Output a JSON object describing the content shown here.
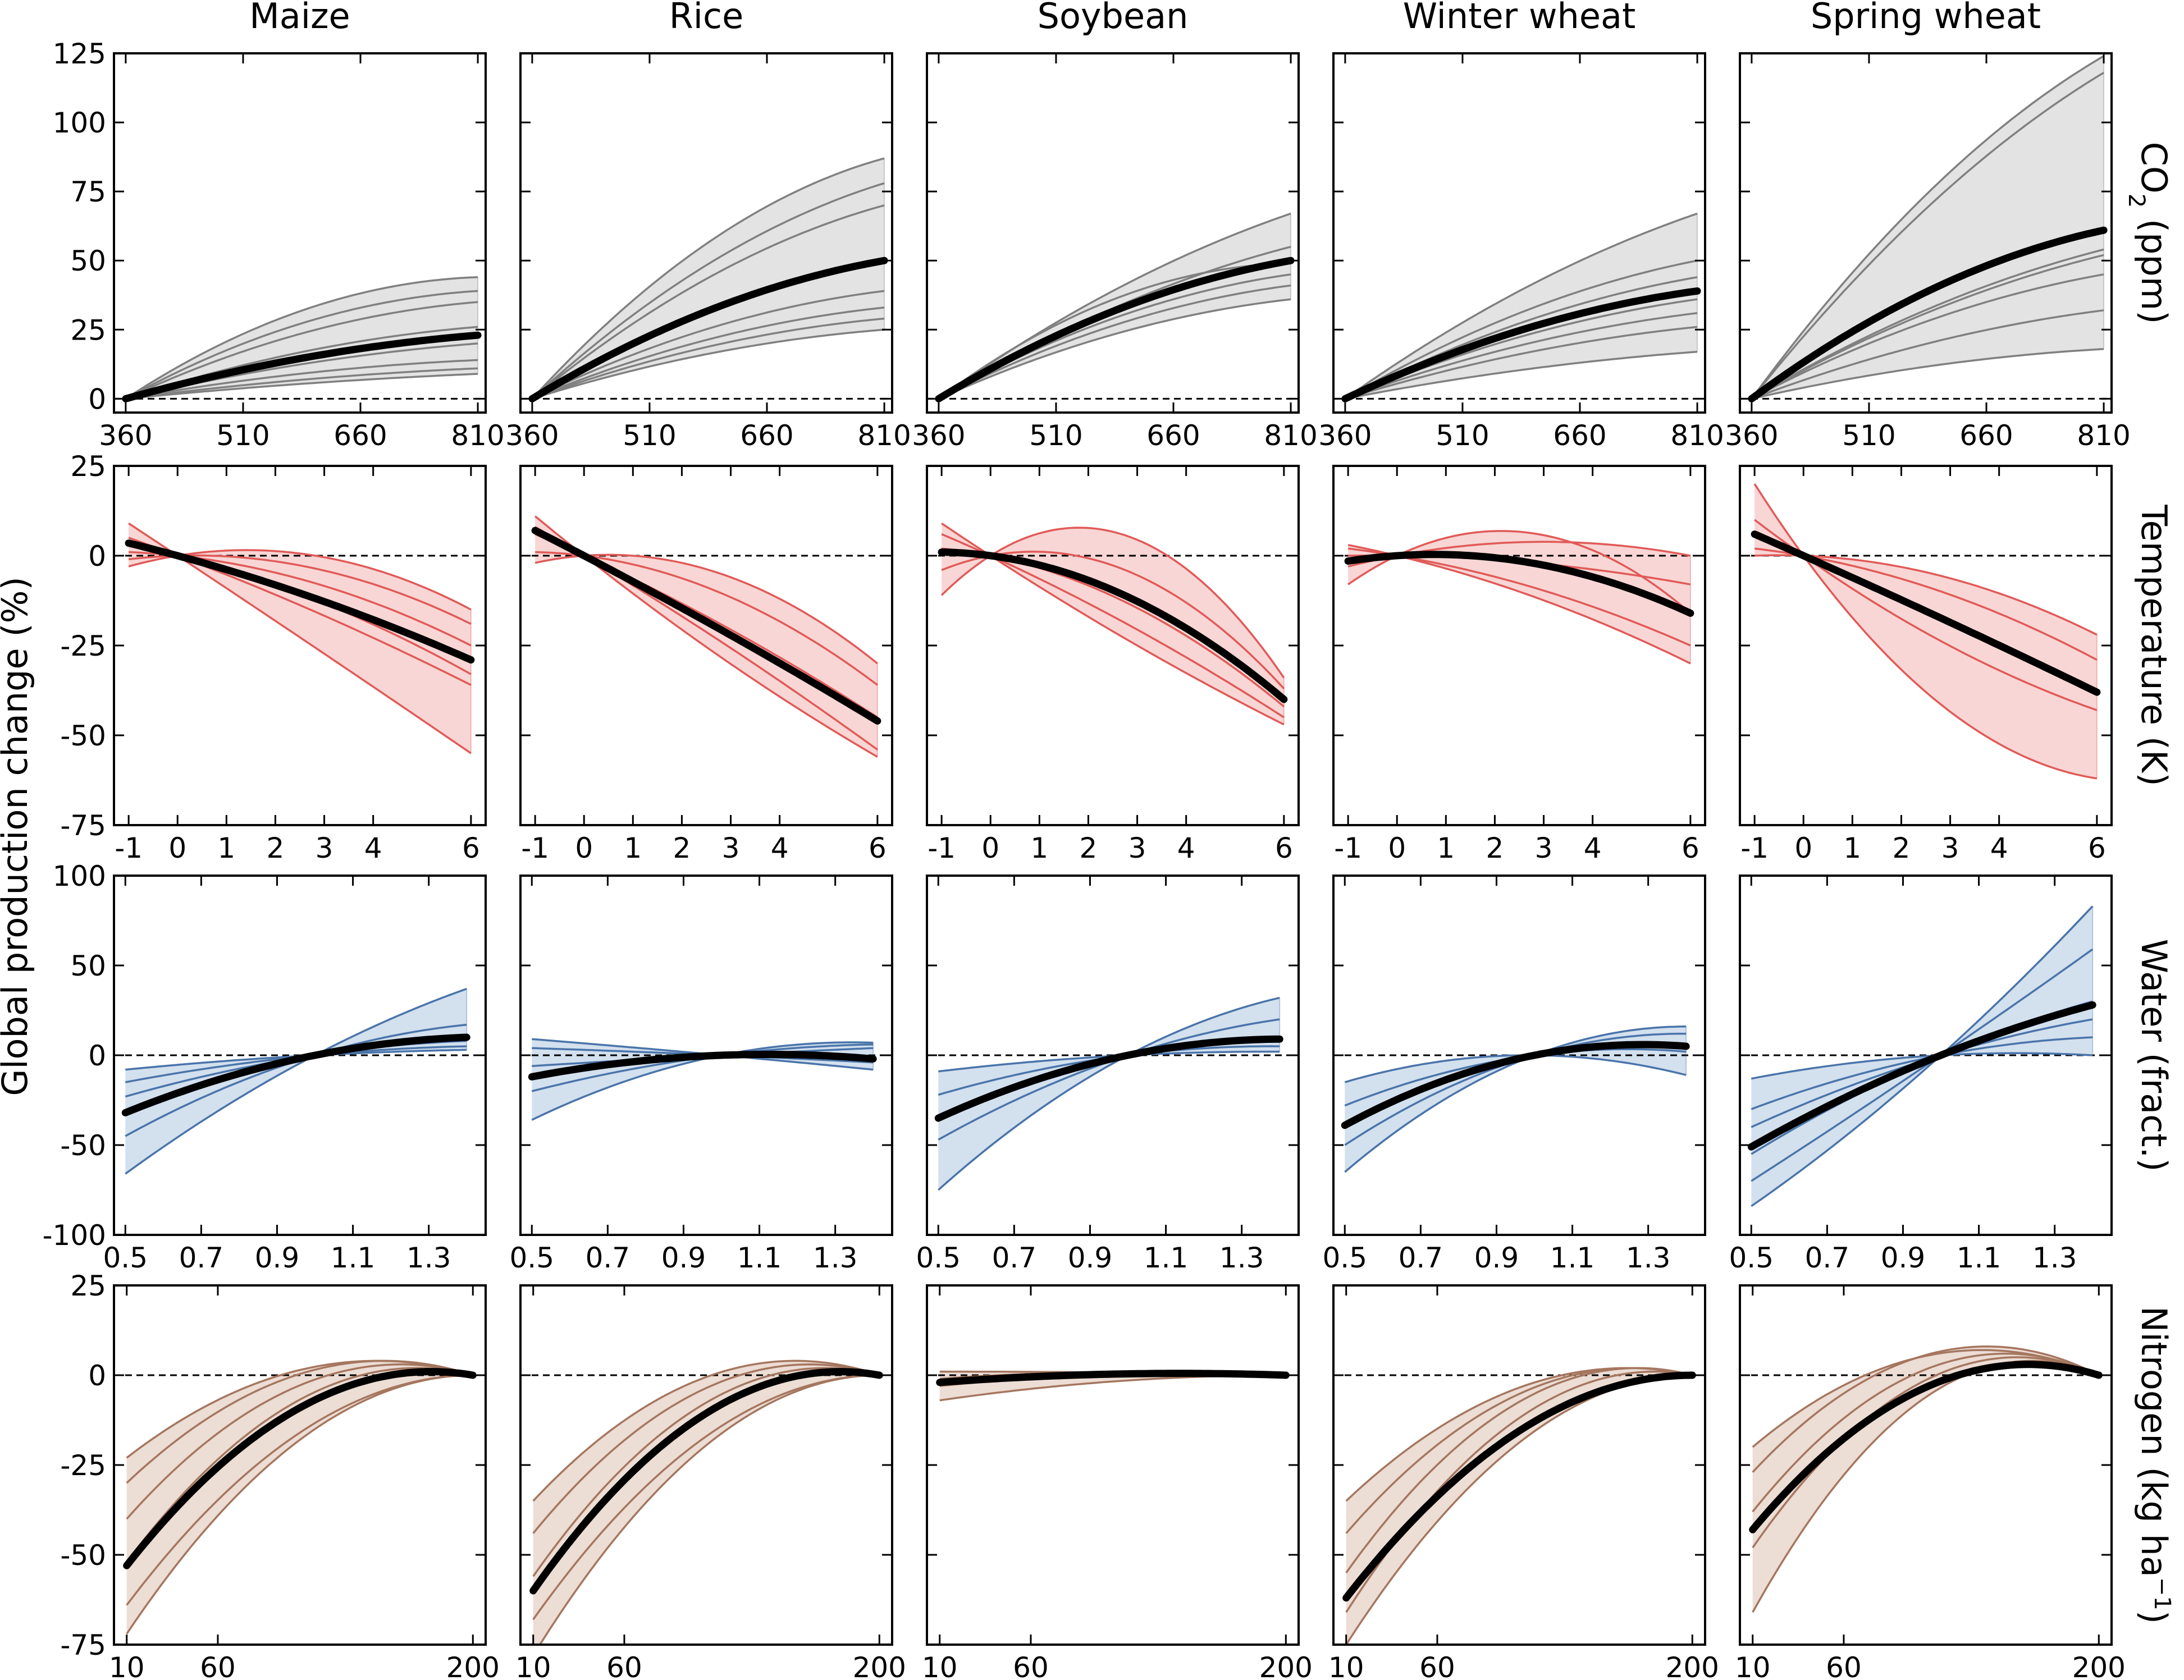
{
  "figure": {
    "ylabel": "Global production change (%)",
    "columns": [
      "Maize",
      "Rice",
      "Soybean",
      "Winter wheat",
      "Spring wheat"
    ]
  },
  "rows": [
    {
      "key": "co2",
      "label_main": "CO",
      "label_sub": "2",
      "label_rest": " (ppm)",
      "label_sup": "",
      "color": "#808080",
      "fill": "#e3e3e3",
      "xlim": [
        345,
        820
      ],
      "ylim": [
        -5,
        125
      ],
      "xticks": [
        360,
        510,
        660,
        810
      ],
      "xtick_labels": [
        "360",
        "510",
        "660",
        "810"
      ],
      "yticks": [
        0,
        25,
        50,
        75,
        100,
        125
      ],
      "ytick_labels": [
        "0",
        "25",
        "50",
        "75",
        "100",
        "125"
      ],
      "xdomain": [
        360,
        810
      ]
    },
    {
      "key": "temperature",
      "label_main": "Temperature (K)",
      "label_sub": "",
      "label_rest": "",
      "label_sup": "",
      "color": "#e05a58",
      "fill": "#f8d6d5",
      "xlim": [
        -1.3,
        6.3
      ],
      "ylim": [
        -75,
        25
      ],
      "xticks": [
        -1,
        0,
        1,
        2,
        3,
        4,
        6
      ],
      "xtick_labels": [
        "-1",
        "0",
        "1",
        "2",
        "3",
        "4",
        "6"
      ],
      "yticks": [
        -75,
        -50,
        -25,
        0,
        25
      ],
      "ytick_labels": [
        "-75",
        "-50",
        "-25",
        "0",
        "25"
      ],
      "xdomain": [
        -1,
        6
      ]
    },
    {
      "key": "water",
      "label_main": "Water (fract.)",
      "label_sub": "",
      "label_rest": "",
      "label_sup": "",
      "color": "#4a74aa",
      "fill": "#d3e0ee",
      "xlim": [
        0.47,
        1.45
      ],
      "ylim": [
        -100,
        100
      ],
      "xticks": [
        0.5,
        0.7,
        0.9,
        1.1,
        1.3
      ],
      "xtick_labels": [
        "0.5",
        "0.7",
        "0.9",
        "1.1",
        "1.3"
      ],
      "yticks": [
        -100,
        -50,
        0,
        50,
        100
      ],
      "ytick_labels": [
        "-100",
        "-50",
        "0",
        "50",
        "100"
      ],
      "xdomain": [
        0.5,
        1.4
      ]
    },
    {
      "key": "nitrogen",
      "label_main": "Nitrogen (kg ha",
      "label_sub": "",
      "label_rest": ")",
      "label_sup": "−1",
      "color": "#a5765f",
      "fill": "#ecddd5",
      "xlim": [
        3,
        207
      ],
      "ylim": [
        -75,
        25
      ],
      "xticks": [
        10,
        60,
        200
      ],
      "xtick_labels": [
        "10",
        "60",
        "200"
      ],
      "yticks": [
        -75,
        -50,
        -25,
        0,
        25
      ],
      "ytick_labels": [
        "-75",
        "-50",
        "-25",
        "0",
        "25"
      ],
      "xdomain": [
        10,
        200
      ]
    }
  ],
  "chart_data": {
    "type": "line",
    "description_fields": "Grid of 4 rows (forcing variable) x 5 columns (crop). Each panel: ensemble of model response curves (thin lines), ensemble envelope (shaded), ensemble mean (thick black), and zero reference (dashed). Curves given as quadratic y = a*(x-x0) + b*(x-x0)^2 anchored at the baseline x0.",
    "baselines": {
      "co2": 360,
      "temperature": 0,
      "water": 1.0,
      "nitrogen": 200
    },
    "panels": {
      "co2": [
        {
          "crop": "Maize",
          "mean_end": 23,
          "members_end": [
            44,
            39,
            35,
            26,
            20,
            14,
            11,
            9
          ],
          "members_curv": [
            0.9,
            0.8,
            0.7,
            0.6,
            0.5,
            0.6,
            0.5,
            0.4
          ]
        },
        {
          "crop": "Rice",
          "mean_end": 50,
          "members_end": [
            87,
            78,
            70,
            39,
            33,
            29,
            25
          ],
          "members_curv": [
            0.6,
            0.5,
            0.5,
            0.6,
            0.6,
            0.6,
            0.6
          ]
        },
        {
          "crop": "Soybean",
          "mean_end": 50,
          "members_end": [
            67,
            55,
            49,
            45,
            41,
            36
          ],
          "members_curv": [
            0.35,
            0.4,
            0.95,
            0.6,
            0.6,
            0.6
          ]
        },
        {
          "crop": "Winter wheat",
          "mean_end": 39,
          "members_end": [
            67,
            50,
            44,
            36,
            31,
            26,
            17
          ],
          "members_curv": [
            0.35,
            0.5,
            0.5,
            0.5,
            0.5,
            0.5,
            0.45
          ]
        },
        {
          "crop": "Spring wheat",
          "mean_end": 61,
          "members_end": [
            124,
            118,
            54,
            52,
            45,
            32,
            18
          ],
          "members_curv": [
            0.4,
            0.35,
            0.4,
            0.4,
            0.5,
            0.5,
            0.6
          ]
        }
      ],
      "temperature": [
        {
          "crop": "Maize",
          "mean_start": 3.5,
          "mean_end": -29,
          "members": [
            [
              9,
              -55
            ],
            [
              5,
              -36
            ],
            [
              3,
              -33
            ],
            [
              1,
              -25
            ],
            [
              -1,
              -19
            ],
            [
              -3,
              -15
            ]
          ]
        },
        {
          "crop": "Rice",
          "mean_start": 7,
          "mean_end": -46,
          "members": [
            [
              11,
              -56
            ],
            [
              8,
              -54
            ],
            [
              6,
              -45
            ],
            [
              1,
              -36
            ],
            [
              -2,
              -30
            ]
          ]
        },
        {
          "crop": "Soybean",
          "mean_start": 1,
          "mean_end": -40,
          "members": [
            [
              9,
              -47
            ],
            [
              6,
              -45
            ],
            [
              2,
              -42
            ],
            [
              -4,
              -37
            ],
            [
              -11,
              -34
            ]
          ]
        },
        {
          "crop": "Winter wheat",
          "mean_start": -1.5,
          "mean_end": -16,
          "members": [
            [
              3,
              -30
            ],
            [
              2,
              -25
            ],
            [
              0,
              -8
            ],
            [
              -3,
              0
            ],
            [
              -8,
              -16
            ]
          ]
        },
        {
          "crop": "Spring wheat",
          "mean_start": 6,
          "mean_end": -38,
          "members": [
            [
              20,
              -62
            ],
            [
              10,
              -43
            ],
            [
              6,
              -38
            ],
            [
              2,
              -29
            ],
            [
              0,
              -22
            ]
          ]
        }
      ],
      "water": [
        {
          "crop": "Maize",
          "mean_start": -32,
          "mean_end": 10,
          "members": [
            [
              -66,
              37
            ],
            [
              -45,
              17
            ],
            [
              -32,
              10
            ],
            [
              -23,
              8
            ],
            [
              -15,
              5
            ],
            [
              -8,
              3
            ]
          ]
        },
        {
          "crop": "Rice",
          "mean_start": -12,
          "mean_end": -2,
          "members": [
            [
              9,
              -8
            ],
            [
              4,
              -4
            ],
            [
              -6,
              4
            ],
            [
              -20,
              6
            ],
            [
              -36,
              7
            ]
          ]
        },
        {
          "crop": "Soybean",
          "mean_start": -35,
          "mean_end": 9,
          "members": [
            [
              -75,
              32
            ],
            [
              -47,
              20
            ],
            [
              -35,
              9
            ],
            [
              -22,
              5
            ],
            [
              -9,
              2
            ]
          ]
        },
        {
          "crop": "Winter wheat",
          "mean_start": -39,
          "mean_end": 5,
          "members": [
            [
              -65,
              16
            ],
            [
              -50,
              12
            ],
            [
              -40,
              5
            ],
            [
              -28,
              2
            ],
            [
              -15,
              -11
            ]
          ]
        },
        {
          "crop": "Spring wheat",
          "mean_start": -51,
          "mean_end": 28,
          "members": [
            [
              -84,
              83
            ],
            [
              -70,
              59
            ],
            [
              -55,
              30
            ],
            [
              -40,
              20
            ],
            [
              -30,
              10
            ],
            [
              -13,
              0
            ]
          ]
        }
      ],
      "nitrogen": [
        {
          "crop": "Maize",
          "mean_start": -53,
          "mean_peak": 1,
          "members": [
            [
              -72,
              0
            ],
            [
              -64,
              0
            ],
            [
              -52,
              2
            ],
            [
              -40,
              3
            ],
            [
              -30,
              4
            ],
            [
              -23,
              4
            ]
          ]
        },
        {
          "crop": "Rice",
          "mean_start": -60,
          "mean_peak": 1,
          "members": [
            [
              -78,
              0
            ],
            [
              -68,
              0
            ],
            [
              -56,
              2
            ],
            [
              -44,
              3
            ],
            [
              -35,
              4
            ]
          ]
        },
        {
          "crop": "Soybean",
          "mean_start": -2,
          "mean_peak": 0.5,
          "members": [
            [
              -7,
              0
            ],
            [
              -3,
              0.5
            ],
            [
              -1,
              1
            ],
            [
              1,
              1
            ]
          ]
        },
        {
          "crop": "Winter wheat",
          "mean_start": -62,
          "mean_peak": 0,
          "members": [
            [
              -75,
              0
            ],
            [
              -66,
              1
            ],
            [
              -55,
              2
            ],
            [
              -44,
              2
            ],
            [
              -35,
              2
            ]
          ]
        },
        {
          "crop": "Spring wheat",
          "mean_start": -43,
          "mean_peak": 3,
          "members": [
            [
              -66,
              4
            ],
            [
              -48,
              5
            ],
            [
              -38,
              6
            ],
            [
              -27,
              8
            ],
            [
              -20,
              7
            ]
          ]
        }
      ]
    }
  }
}
